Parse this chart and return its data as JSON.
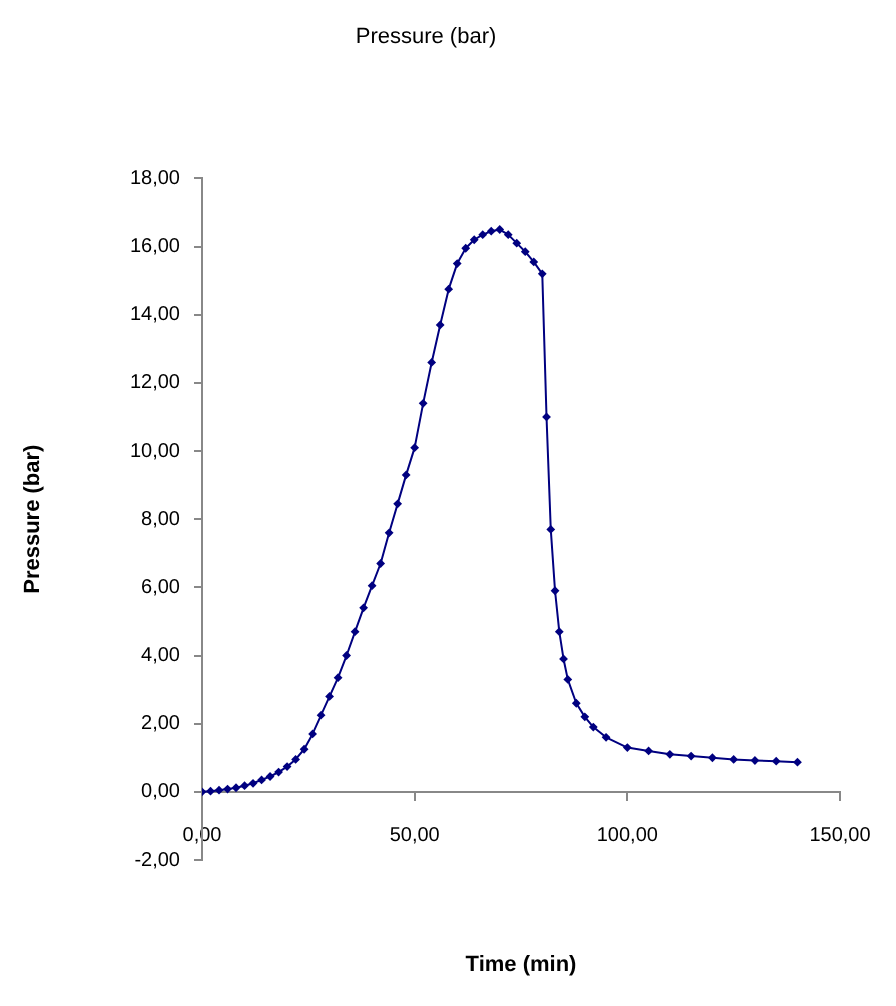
{
  "chart_data": {
    "type": "line",
    "title": "Pressure (bar)",
    "xlabel": "Time (min)",
    "ylabel": "Pressure (bar)",
    "x": [
      0,
      2,
      4,
      6,
      8,
      10,
      12,
      14,
      16,
      18,
      20,
      22,
      24,
      26,
      28,
      30,
      32,
      34,
      36,
      38,
      40,
      42,
      44,
      46,
      48,
      50,
      52,
      54,
      56,
      58,
      60,
      62,
      64,
      66,
      68,
      70,
      72,
      74,
      76,
      78,
      80,
      81,
      82,
      83,
      84,
      85,
      86,
      88,
      90,
      92,
      95,
      100,
      105,
      110,
      115,
      120,
      125,
      130,
      135,
      140
    ],
    "series": [
      {
        "color": "#000080",
        "values": [
          0,
          0.02,
          0.05,
          0.08,
          0.12,
          0.18,
          0.25,
          0.35,
          0.45,
          0.58,
          0.74,
          0.95,
          1.25,
          1.7,
          2.25,
          2.8,
          3.35,
          4.0,
          4.7,
          5.4,
          6.05,
          6.7,
          7.6,
          8.45,
          9.3,
          10.1,
          11.4,
          12.6,
          13.7,
          14.75,
          15.5,
          15.95,
          16.2,
          16.35,
          16.45,
          16.5,
          16.35,
          16.1,
          15.85,
          15.55,
          15.2,
          11.0,
          7.7,
          5.9,
          4.7,
          3.9,
          3.3,
          2.6,
          2.2,
          1.9,
          1.6,
          1.3,
          1.2,
          1.1,
          1.05,
          1.0,
          0.95,
          0.92,
          0.9,
          0.87
        ]
      }
    ],
    "xlim": [
      0,
      150
    ],
    "xticks": [
      {
        "value": 0,
        "label": "0,00"
      },
      {
        "value": 50,
        "label": "50,00"
      },
      {
        "value": 100,
        "label": "100,00"
      },
      {
        "value": 150,
        "label": "150,00"
      }
    ],
    "ylim": [
      -2,
      18
    ],
    "yticks": [
      {
        "value": -2,
        "label": "-2,00"
      },
      {
        "value": 0,
        "label": "0,00"
      },
      {
        "value": 2,
        "label": "2,00"
      },
      {
        "value": 4,
        "label": "4,00"
      },
      {
        "value": 6,
        "label": "6,00"
      },
      {
        "value": 8,
        "label": "8,00"
      },
      {
        "value": 10,
        "label": "10,00"
      },
      {
        "value": 12,
        "label": "12,00"
      },
      {
        "value": 14,
        "label": "14,00"
      },
      {
        "value": 16,
        "label": "16,00"
      },
      {
        "value": 18,
        "label": "18,00"
      }
    ],
    "marker": "diamond",
    "line_style": "solid",
    "grid": false,
    "legend": false
  }
}
